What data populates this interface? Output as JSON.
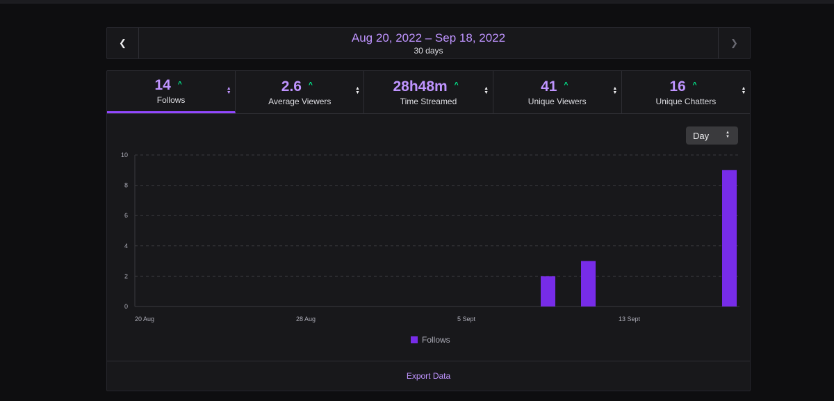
{
  "range": {
    "title": "Aug 20, 2022 – Sep 18, 2022",
    "subtitle": "30 days",
    "prev_icon": "chevron-left-icon",
    "next_icon": "chevron-right-icon"
  },
  "stats": [
    {
      "value": "14",
      "label": "Follows",
      "trend": "up",
      "active": true
    },
    {
      "value": "2.6",
      "label": "Average Viewers",
      "trend": "up",
      "active": false
    },
    {
      "value": "28h48m",
      "label": "Time Streamed",
      "trend": "up",
      "active": false
    },
    {
      "value": "41",
      "label": "Unique Viewers",
      "trend": "up",
      "active": false
    },
    {
      "value": "16",
      "label": "Unique Chatters",
      "trend": "up",
      "active": false
    }
  ],
  "period_select": {
    "value": "Day"
  },
  "export": {
    "label": "Export Data"
  },
  "colors": {
    "accent": "#bf94ff",
    "bar": "#772ce8",
    "trend_up": "#00f593",
    "background": "#0e0e10",
    "panel": "#18181b"
  },
  "chart_data": {
    "type": "bar",
    "x_tick_labels": [
      "20 Aug",
      "28 Aug",
      "5 Sept",
      "13 Sept"
    ],
    "x": [
      "20 Aug",
      "21 Aug",
      "22 Aug",
      "23 Aug",
      "24 Aug",
      "25 Aug",
      "26 Aug",
      "27 Aug",
      "28 Aug",
      "29 Aug",
      "30 Aug",
      "31 Aug",
      "1 Sept",
      "2 Sept",
      "3 Sept",
      "4 Sept",
      "5 Sept",
      "6 Sept",
      "7 Sept",
      "8 Sept",
      "9 Sept",
      "10 Sept",
      "11 Sept",
      "12 Sept",
      "13 Sept",
      "14 Sept",
      "15 Sept",
      "16 Sept",
      "17 Sept",
      "18 Sept"
    ],
    "series": [
      {
        "name": "Follows",
        "values": [
          0,
          0,
          0,
          0,
          0,
          0,
          0,
          0,
          0,
          0,
          0,
          0,
          0,
          0,
          0,
          0,
          0,
          0,
          0,
          0,
          2,
          0,
          3,
          0,
          0,
          0,
          0,
          0,
          0,
          9
        ]
      }
    ],
    "ylim": [
      0,
      10
    ],
    "y_ticks": [
      0,
      2,
      4,
      6,
      8,
      10
    ],
    "grid": true,
    "legend": "bottom-center"
  }
}
